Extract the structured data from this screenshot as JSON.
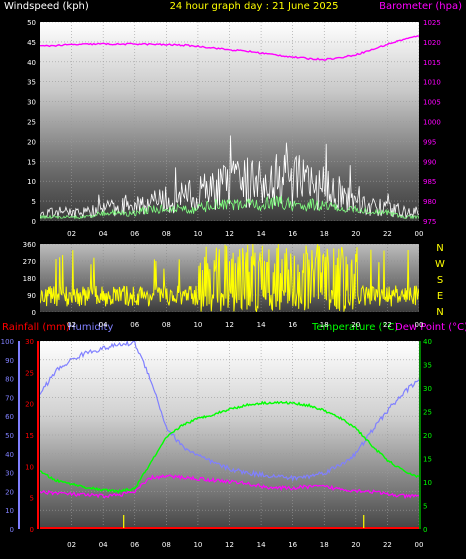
{
  "colors": {
    "background": "#000000",
    "axis_text": "#ffffff",
    "barometer": "#ff00ff",
    "wind": "#ffffff",
    "wind_avg": "#80ff80",
    "direction": "#ffff00",
    "temperature": "#00ff00",
    "dewpoint": "#ff00ff",
    "humidity": "#8080ff",
    "rainfall": "#ff0000",
    "rain_bar": "#ffff00"
  },
  "header": {
    "windspeed_label": "Windspeed (kph)",
    "title": "24 hour graph day : 21 June 2025",
    "barometer_label": "Barometer (hpa)"
  },
  "labels3": {
    "rainfall": "Rainfall (mm)",
    "humidity": "Humidity",
    "temperature": "Temperature (°C)",
    "dewpoint": "Dew Point (°C)"
  },
  "compass": [
    "N",
    "W",
    "S",
    "E",
    "N"
  ],
  "chart_data": [
    {
      "type": "line",
      "x_ticks": [
        "02",
        "04",
        "06",
        "08",
        "10",
        "12",
        "14",
        "16",
        "18",
        "20",
        "22",
        "00"
      ],
      "y_left_ticks": [
        "0",
        "5",
        "10",
        "15",
        "20",
        "25",
        "30",
        "35",
        "40",
        "45",
        "50"
      ],
      "y_right_ticks": [
        "975",
        "980",
        "985",
        "990",
        "995",
        "1000",
        "1005",
        "1010",
        "1015",
        "1020",
        "1025"
      ],
      "ylim_left": [
        0,
        50
      ],
      "ylim_right": [
        975,
        1025
      ],
      "x": [
        0,
        1,
        2,
        3,
        4,
        5,
        6,
        7,
        8,
        9,
        10,
        11,
        12,
        13,
        14,
        15,
        16,
        17,
        18,
        19,
        20,
        21,
        22,
        23,
        24
      ],
      "series": [
        {
          "name": "Barometer (hpa)",
          "axis": "right",
          "values": [
            1018.9,
            1019.1,
            1019.3,
            1019.4,
            1019.5,
            1019.4,
            1019.5,
            1019.4,
            1019.3,
            1019.2,
            1018.9,
            1018.5,
            1018.0,
            1017.7,
            1017.2,
            1016.7,
            1016.2,
            1015.8,
            1015.6,
            1016.0,
            1016.8,
            1018.0,
            1019.4,
            1020.6,
            1021.5
          ]
        },
        {
          "name": "Windspeed (kph)",
          "axis": "left",
          "values": [
            2,
            3,
            3,
            3,
            4,
            5,
            6,
            6,
            7,
            8,
            9,
            11,
            12,
            13,
            14,
            15,
            14,
            12,
            11,
            9,
            7,
            5,
            4,
            3,
            3
          ]
        },
        {
          "name": "Wind average",
          "axis": "left",
          "values": [
            1,
            1,
            1,
            1,
            2,
            2,
            2,
            3,
            3,
            3,
            3,
            4,
            4,
            4,
            4,
            5,
            4,
            4,
            4,
            3,
            3,
            2,
            2,
            1,
            1
          ]
        }
      ]
    },
    {
      "type": "line",
      "x_ticks": [
        "02",
        "04",
        "06",
        "08",
        "10",
        "12",
        "14",
        "16",
        "18",
        "20",
        "22",
        "00"
      ],
      "y_ticks": [
        "0",
        "90",
        "180",
        "270",
        "360"
      ],
      "ylim": [
        0,
        360
      ],
      "series": [
        {
          "name": "Wind direction",
          "pattern": "Mostly 30–150 degrees overnight with spikes toward 300; from about 10:00 to 20:00 swinging rapidly across 0–360; settling back to 30–150 after 21:00"
        }
      ]
    },
    {
      "type": "line",
      "x_ticks": [
        "02",
        "04",
        "06",
        "08",
        "10",
        "12",
        "14",
        "16",
        "18",
        "20",
        "22",
        "00"
      ],
      "y_left_humidity_ticks": [
        "0",
        "10",
        "20",
        "30",
        "40",
        "50",
        "60",
        "70",
        "80",
        "90",
        "100"
      ],
      "y_left_rain_ticks": [
        "0",
        "5",
        "10",
        "15",
        "20",
        "25",
        "30"
      ],
      "y_right_ticks": [
        "0",
        "5",
        "10",
        "15",
        "20",
        "25",
        "30",
        "35",
        "40"
      ],
      "ylim_humidity": [
        0,
        100
      ],
      "ylim_rain": [
        0,
        30
      ],
      "ylim_temperature": [
        0,
        40
      ],
      "x": [
        0,
        1,
        2,
        3,
        4,
        5,
        6,
        7,
        8,
        9,
        10,
        11,
        12,
        13,
        14,
        15,
        16,
        17,
        18,
        19,
        20,
        21,
        22,
        23,
        24
      ],
      "series": [
        {
          "name": "Humidity",
          "axis": "humidity",
          "values": [
            72,
            84,
            90,
            94,
            96,
            98,
            99,
            80,
            54,
            44,
            39,
            35,
            32,
            30,
            29,
            28,
            27,
            28,
            30,
            34,
            40,
            52,
            63,
            72,
            80
          ]
        },
        {
          "name": "Temperature (°C)",
          "axis": "temperature",
          "values": [
            12.2,
            10.3,
            9.6,
            8.8,
            8.3,
            8.0,
            8.6,
            14,
            19.4,
            22.1,
            23.5,
            24.4,
            25.5,
            26.3,
            26.8,
            26.9,
            26.8,
            26.3,
            25.2,
            23.6,
            21.5,
            17.8,
            14.6,
            12.4,
            11.0
          ]
        },
        {
          "name": "Dew Point (°C)",
          "axis": "temperature",
          "values": [
            7.9,
            7.7,
            7.4,
            7.2,
            7.0,
            7.3,
            7.9,
            10.9,
            11.2,
            11.0,
            10.7,
            10.4,
            10.1,
            9.7,
            9.1,
            8.7,
            8.7,
            9.0,
            9.0,
            8.5,
            8.2,
            8.0,
            7.4,
            7.0,
            6.9
          ]
        },
        {
          "name": "Rainfall (mm)",
          "axis": "rain",
          "values": [
            0,
            0,
            0,
            0,
            0,
            0,
            0,
            0,
            0,
            0,
            0,
            0,
            0,
            0,
            0,
            0,
            0,
            0,
            0,
            0,
            0,
            0,
            0,
            0,
            0
          ]
        }
      ]
    }
  ]
}
